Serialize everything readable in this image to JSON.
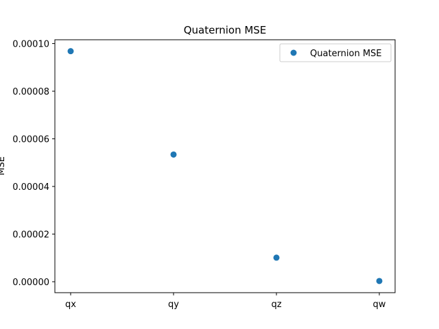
{
  "chart_data": {
    "type": "scatter",
    "title": "Quaternion MSE",
    "xlabel": "",
    "ylabel": "MSE",
    "categories": [
      "qx",
      "qy",
      "qz",
      "qw"
    ],
    "series": [
      {
        "name": "Quaternion MSE",
        "values": [
          9.68e-05,
          5.34e-05,
          1.01e-05,
          3e-07
        ],
        "color": "#1f77b4"
      }
    ],
    "yticks": [
      {
        "value": 0.0,
        "label": "0.00000"
      },
      {
        "value": 2e-05,
        "label": "0.00002"
      },
      {
        "value": 4e-05,
        "label": "0.00004"
      },
      {
        "value": 6e-05,
        "label": "0.00006"
      },
      {
        "value": 8e-05,
        "label": "0.00008"
      },
      {
        "value": 0.0001,
        "label": "0.00010"
      }
    ],
    "ylim": [
      -4.6e-06,
      0.0001016
    ],
    "grid": false,
    "legend_position": "upper right"
  }
}
